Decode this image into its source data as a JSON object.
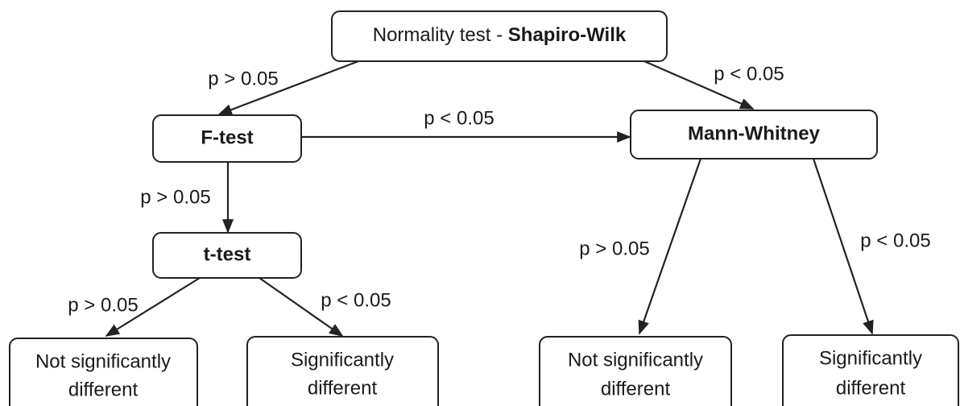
{
  "nodes": [
    {
      "prefix": "Normality test - ",
      "emphasis": "Shapiro-Wilk"
    },
    {
      "label": "F-test"
    },
    {
      "label": "Mann-Whitney"
    },
    {
      "label": "t-test"
    },
    {
      "lines": [
        "Not significantly",
        "different"
      ]
    },
    {
      "lines": [
        "Significantly",
        "different"
      ]
    },
    {
      "lines": [
        "Not significantly",
        "different"
      ]
    },
    {
      "lines": [
        "Significantly",
        "different"
      ]
    }
  ],
  "edges": [
    {
      "label": "p > 0.05"
    },
    {
      "label": "p < 0.05"
    },
    {
      "label": "p < 0.05"
    },
    {
      "label": "p > 0.05"
    },
    {
      "label": "p > 0.05"
    },
    {
      "label": "p < 0.05"
    },
    {
      "label": "p > 0.05"
    },
    {
      "label": "p < 0.05"
    }
  ]
}
